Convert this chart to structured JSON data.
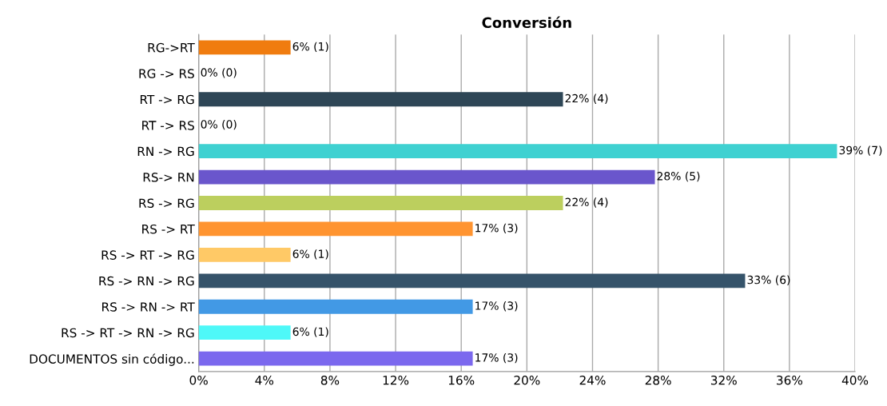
{
  "chart_data": {
    "type": "bar",
    "orientation": "horizontal",
    "title": "Conversión",
    "categories": [
      "RG->RT",
      "RG -> RS",
      "RT -> RG",
      "RT -> RS",
      "RN -> RG",
      "RS-> RN",
      "RS -> RG",
      "RS -> RT",
      "RS -> RT -> RG",
      "RS -> RN -> RG",
      "RS -> RN -> RT",
      "RS -> RT -> RN -> RG",
      "DOCUMENTOS sin código..."
    ],
    "values": [
      5.6,
      0,
      22.2,
      0,
      38.9,
      27.8,
      22.2,
      16.7,
      5.6,
      33.3,
      16.7,
      5.6,
      16.7
    ],
    "colors": [
      "#f07c0f",
      "#888888",
      "#2e4656",
      "#888888",
      "#3fd1d1",
      "#6a56cc",
      "#bccf5e",
      "#ff9430",
      "#ffc966",
      "#35536a",
      "#4299e5",
      "#4ef8f8",
      "#7b68ee"
    ],
    "value_labels": [
      "6% (1)",
      "0% (0)",
      "22% (4)",
      "0% (0)",
      "39% (7)",
      "28% (5)",
      "22% (4)",
      "17% (3)",
      "6% (1)",
      "33% (6)",
      "17% (3)",
      "6% (1)",
      "17% (3)"
    ],
    "xlim": [
      0,
      40
    ],
    "xticks": [
      {
        "value": 0,
        "label": "0%"
      },
      {
        "value": 4,
        "label": "4%"
      },
      {
        "value": 8,
        "label": "8%"
      },
      {
        "value": 12,
        "label": "12%"
      },
      {
        "value": 16,
        "label": "16%"
      },
      {
        "value": 20,
        "label": "20%"
      },
      {
        "value": 24,
        "label": "24%"
      },
      {
        "value": 28,
        "label": "28%"
      },
      {
        "value": 32,
        "label": "32%"
      },
      {
        "value": 36,
        "label": "36%"
      },
      {
        "value": 40,
        "label": "40%"
      }
    ],
    "grid": "x",
    "legend": false
  }
}
